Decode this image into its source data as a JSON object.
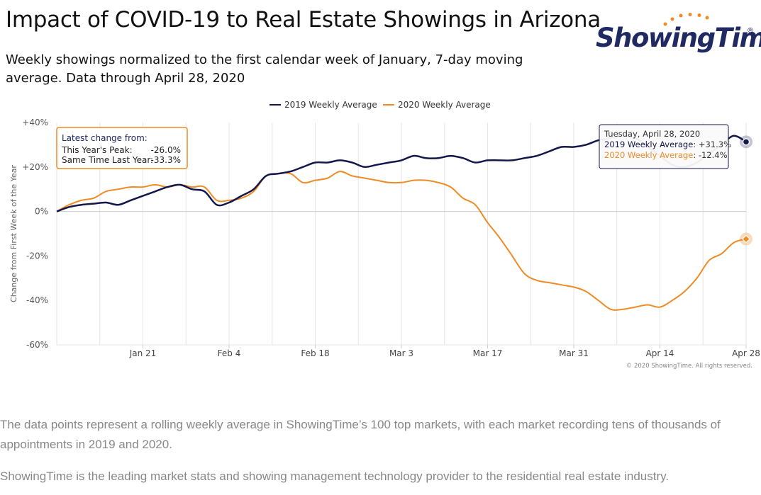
{
  "header": {
    "title": "Impact of COVID-19 to Real Estate Showings in Arizona",
    "subtitle": "Weekly showings normalized to the first calendar week of January, 7-day moving average. Data through April 28, 2020"
  },
  "logo": {
    "text": "ShowingTime",
    "registered": "®"
  },
  "colors": {
    "s2019": "#14174a",
    "s2020": "#f08a24",
    "grid": "#e6e6e6",
    "zero": "#cccccc"
  },
  "chart_data": {
    "type": "line",
    "ylabel": "Change from First Week of the Year",
    "ylim": [
      -60,
      40
    ],
    "yticks": [
      {
        "v": 40,
        "label": "+40%"
      },
      {
        "v": 20,
        "label": "+20%"
      },
      {
        "v": 0,
        "label": "0%"
      },
      {
        "v": -20,
        "label": "-20%"
      },
      {
        "v": -40,
        "label": "-40%"
      },
      {
        "v": -60,
        "label": "-60%"
      }
    ],
    "xlim": [
      "2020-01-07",
      "2020-04-28"
    ],
    "xticks": [
      {
        "date": "2020-01-21",
        "label": "Jan 21"
      },
      {
        "date": "2020-02-04",
        "label": "Feb 4"
      },
      {
        "date": "2020-02-18",
        "label": "Feb 18"
      },
      {
        "date": "2020-03-03",
        "label": "Mar 3"
      },
      {
        "date": "2020-03-17",
        "label": "Mar 17"
      },
      {
        "date": "2020-03-31",
        "label": "Mar 31"
      },
      {
        "date": "2020-04-14",
        "label": "Apr 14"
      },
      {
        "date": "2020-04-28",
        "label": "Apr 28"
      }
    ],
    "grid": true,
    "legend": "top-center",
    "series": [
      {
        "name": "2019 Weekly Average",
        "color": "#14174a",
        "points": [
          [
            "2020-01-07",
            0
          ],
          [
            "2020-01-09",
            2
          ],
          [
            "2020-01-11",
            3
          ],
          [
            "2020-01-13",
            3.5
          ],
          [
            "2020-01-15",
            4
          ],
          [
            "2020-01-17",
            3
          ],
          [
            "2020-01-19",
            5
          ],
          [
            "2020-01-21",
            7
          ],
          [
            "2020-01-23",
            9
          ],
          [
            "2020-01-25",
            11
          ],
          [
            "2020-01-27",
            12
          ],
          [
            "2020-01-29",
            10
          ],
          [
            "2020-01-31",
            9
          ],
          [
            "2020-02-02",
            3
          ],
          [
            "2020-02-04",
            4
          ],
          [
            "2020-02-06",
            7
          ],
          [
            "2020-02-08",
            10
          ],
          [
            "2020-02-10",
            16
          ],
          [
            "2020-02-12",
            17
          ],
          [
            "2020-02-14",
            18
          ],
          [
            "2020-02-16",
            20
          ],
          [
            "2020-02-18",
            22
          ],
          [
            "2020-02-20",
            22
          ],
          [
            "2020-02-22",
            23
          ],
          [
            "2020-02-24",
            22
          ],
          [
            "2020-02-26",
            20
          ],
          [
            "2020-02-28",
            21
          ],
          [
            "2020-03-01",
            22
          ],
          [
            "2020-03-03",
            23
          ],
          [
            "2020-03-05",
            25
          ],
          [
            "2020-03-07",
            24
          ],
          [
            "2020-03-09",
            24
          ],
          [
            "2020-03-11",
            25
          ],
          [
            "2020-03-13",
            24
          ],
          [
            "2020-03-15",
            22
          ],
          [
            "2020-03-17",
            23
          ],
          [
            "2020-03-19",
            23
          ],
          [
            "2020-03-21",
            23
          ],
          [
            "2020-03-23",
            24
          ],
          [
            "2020-03-25",
            25
          ],
          [
            "2020-03-27",
            27
          ],
          [
            "2020-03-29",
            29
          ],
          [
            "2020-03-31",
            29
          ],
          [
            "2020-04-02",
            30
          ],
          [
            "2020-04-04",
            32
          ],
          [
            "2020-04-06",
            33
          ],
          [
            "2020-04-08",
            34
          ],
          [
            "2020-04-10",
            33
          ],
          [
            "2020-04-12",
            29
          ],
          [
            "2020-04-14",
            25
          ],
          [
            "2020-04-16",
            21
          ],
          [
            "2020-04-18",
            20
          ],
          [
            "2020-04-20",
            22
          ],
          [
            "2020-04-22",
            26
          ],
          [
            "2020-04-24",
            30
          ],
          [
            "2020-04-26",
            34
          ],
          [
            "2020-04-28",
            31.3
          ]
        ]
      },
      {
        "name": "2020 Weekly Average",
        "color": "#f08a24",
        "points": [
          [
            "2020-01-07",
            0
          ],
          [
            "2020-01-09",
            3
          ],
          [
            "2020-01-11",
            5
          ],
          [
            "2020-01-13",
            6
          ],
          [
            "2020-01-15",
            9
          ],
          [
            "2020-01-17",
            10
          ],
          [
            "2020-01-19",
            11
          ],
          [
            "2020-01-21",
            11
          ],
          [
            "2020-01-23",
            12
          ],
          [
            "2020-01-25",
            11
          ],
          [
            "2020-01-27",
            12
          ],
          [
            "2020-01-29",
            11
          ],
          [
            "2020-01-31",
            11
          ],
          [
            "2020-02-02",
            5
          ],
          [
            "2020-02-04",
            5
          ],
          [
            "2020-02-06",
            6
          ],
          [
            "2020-02-08",
            9
          ],
          [
            "2020-02-10",
            16
          ],
          [
            "2020-02-12",
            17
          ],
          [
            "2020-02-14",
            17
          ],
          [
            "2020-02-16",
            13
          ],
          [
            "2020-02-18",
            14
          ],
          [
            "2020-02-20",
            15
          ],
          [
            "2020-02-22",
            18
          ],
          [
            "2020-02-24",
            16
          ],
          [
            "2020-02-26",
            15
          ],
          [
            "2020-02-28",
            14
          ],
          [
            "2020-03-01",
            13
          ],
          [
            "2020-03-03",
            13
          ],
          [
            "2020-03-05",
            14
          ],
          [
            "2020-03-07",
            14
          ],
          [
            "2020-03-09",
            13
          ],
          [
            "2020-03-11",
            11
          ],
          [
            "2020-03-13",
            6
          ],
          [
            "2020-03-15",
            3
          ],
          [
            "2020-03-17",
            -5
          ],
          [
            "2020-03-19",
            -12
          ],
          [
            "2020-03-21",
            -20
          ],
          [
            "2020-03-23",
            -28
          ],
          [
            "2020-03-25",
            -31
          ],
          [
            "2020-03-27",
            -32
          ],
          [
            "2020-03-29",
            -33
          ],
          [
            "2020-03-31",
            -34
          ],
          [
            "2020-04-02",
            -36
          ],
          [
            "2020-04-04",
            -40
          ],
          [
            "2020-04-06",
            -44
          ],
          [
            "2020-04-08",
            -44
          ],
          [
            "2020-04-10",
            -43
          ],
          [
            "2020-04-12",
            -42
          ],
          [
            "2020-04-14",
            -43
          ],
          [
            "2020-04-16",
            -40
          ],
          [
            "2020-04-18",
            -36
          ],
          [
            "2020-04-20",
            -30
          ],
          [
            "2020-04-22",
            -22
          ],
          [
            "2020-04-24",
            -19
          ],
          [
            "2020-04-26",
            -14
          ],
          [
            "2020-04-28",
            -12.4
          ]
        ]
      }
    ]
  },
  "info_box": {
    "heading": "Latest change from:",
    "rows": [
      {
        "label": "This Year's Peak:",
        "value": "-26.0%"
      },
      {
        "label": "Same Time Last Year:",
        "value": "-33.3%"
      }
    ]
  },
  "tooltip": {
    "date": "Tuesday, April 28, 2020",
    "line1_label": "2019 Weekly Average",
    "line1_value": "+31.3%",
    "line2_label": "2020 Weekly Average",
    "line2_value": "-12.4%"
  },
  "credits": "© 2020 ShowingTime. All rights reserved.",
  "footer": {
    "p1": "The data points represent a rolling weekly average in ShowingTime’s 100 top markets, with each market recording tens of thousands of appointments in 2019 and 2020.",
    "p2": "ShowingTime is the leading market stats and showing management technology provider to the residential real estate industry."
  }
}
